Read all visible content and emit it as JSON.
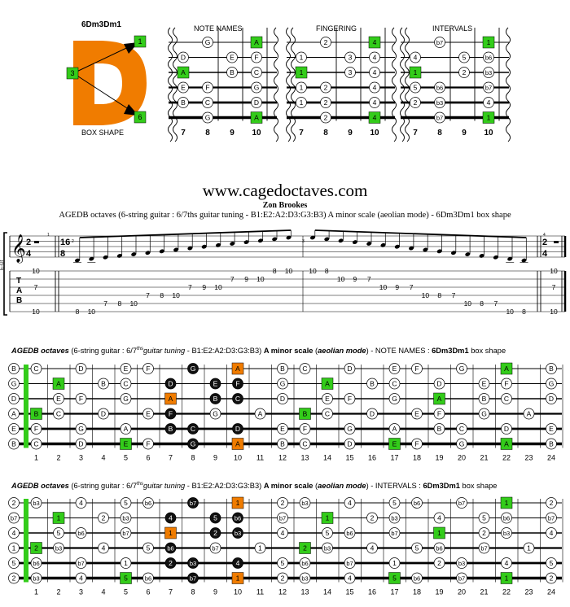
{
  "shape": {
    "name": "6Dm3Dm1",
    "letter": "D",
    "caption": "BOX SHAPE",
    "markers": [
      "1",
      "3",
      "6"
    ]
  },
  "mini": {
    "titles": [
      "NOTE NAMES",
      "FINGERING",
      "INTERVALS"
    ],
    "frets": [
      "7",
      "8",
      "9",
      "10"
    ],
    "names": [
      [
        "",
        "G",
        "",
        "A"
      ],
      [
        "D",
        "",
        "E",
        "F"
      ],
      [
        "A",
        "",
        "B",
        "C"
      ],
      [
        "E",
        "F",
        "",
        "G"
      ],
      [
        "B",
        "C",
        "",
        "D"
      ],
      [
        "",
        "G",
        "",
        "A"
      ]
    ],
    "fingers": [
      [
        "",
        "2",
        "",
        "4"
      ],
      [
        "1",
        "",
        "3",
        "4"
      ],
      [
        "1",
        "",
        "3",
        "4"
      ],
      [
        "1",
        "2",
        "",
        "4"
      ],
      [
        "1",
        "2",
        "",
        "4"
      ],
      [
        "",
        "2",
        "",
        "4"
      ]
    ],
    "intervals": [
      [
        "",
        "b7",
        "",
        "1"
      ],
      [
        "4",
        "",
        "5",
        "b6"
      ],
      [
        "1",
        "",
        "2",
        "b3"
      ],
      [
        "5",
        "b6",
        "",
        "b7"
      ],
      [
        "2",
        "b3",
        "",
        "4"
      ],
      [
        "",
        "b7",
        "",
        "1"
      ]
    ],
    "roots": [
      [
        0,
        3
      ],
      [
        2,
        0
      ],
      [
        5,
        3
      ]
    ]
  },
  "site": {
    "url": "www.cagedoctaves.com",
    "author": "Zon Brookes",
    "score_title": "AGEDB octaves (6-string guitar : 6/7ths guitar tuning - B1:E2:A2:D3:G3:B3) A minor scale (aeolian mode) - 6Dm3Dm1 box shape"
  },
  "score": {
    "clef_label": "E-Gt",
    "time1": [
      "2",
      "4"
    ],
    "time2": [
      "16",
      "8"
    ],
    "measure_nums": [
      "1",
      "2",
      "3",
      "4"
    ],
    "tab_letters": [
      "T",
      "A",
      "B"
    ],
    "m1_nums": [
      "10",
      "7",
      "10"
    ],
    "m2_tab": [
      {
        "s": 6,
        "f": "8"
      },
      {
        "s": 6,
        "f": "10"
      },
      {
        "s": 5,
        "f": "7"
      },
      {
        "s": 5,
        "f": "8"
      },
      {
        "s": 5,
        "f": "10"
      },
      {
        "s": 4,
        "f": "7"
      },
      {
        "s": 4,
        "f": "8"
      },
      {
        "s": 4,
        "f": "10"
      },
      {
        "s": 3,
        "f": "7"
      },
      {
        "s": 3,
        "f": "9"
      },
      {
        "s": 3,
        "f": "10"
      },
      {
        "s": 2,
        "f": "7"
      },
      {
        "s": 2,
        "f": "9"
      },
      {
        "s": 2,
        "f": "10"
      },
      {
        "s": 1,
        "f": "8"
      },
      {
        "s": 1,
        "f": "10"
      }
    ],
    "m3_tab": [
      {
        "s": 1,
        "f": "10"
      },
      {
        "s": 1,
        "f": "8"
      },
      {
        "s": 2,
        "f": "10"
      },
      {
        "s": 2,
        "f": "9"
      },
      {
        "s": 2,
        "f": "7"
      },
      {
        "s": 3,
        "f": "10"
      },
      {
        "s": 3,
        "f": "9"
      },
      {
        "s": 3,
        "f": "7"
      },
      {
        "s": 4,
        "f": "10"
      },
      {
        "s": 4,
        "f": "8"
      },
      {
        "s": 4,
        "f": "7"
      },
      {
        "s": 5,
        "f": "10"
      },
      {
        "s": 5,
        "f": "8"
      },
      {
        "s": 5,
        "f": "7"
      },
      {
        "s": 6,
        "f": "10"
      },
      {
        "s": 6,
        "f": "8"
      }
    ],
    "m4_nums": [
      "10",
      "7",
      "10"
    ]
  },
  "big1": {
    "title_bold": "AGEDB octaves",
    "title_a": " (6-string guitar : 6/7",
    "title_sup": "ths",
    "title_i": "guitar tuning",
    "title_b": " - B1:E2:A2:D3:G3:B3) ",
    "title_bold2": "A minor scale",
    "title_c": " (",
    "title_bi": "aeolian mode",
    "title_d": ") - NOTE NAMES : ",
    "title_bold3": "6Dm3Dm1",
    "title_e": " box shape",
    "open": [
      "B",
      "G",
      "D",
      "A",
      "E",
      "B"
    ],
    "rows": [
      [
        "C",
        "",
        "D",
        "",
        "E",
        "F",
        "",
        "G",
        "",
        "A",
        "",
        "B",
        "C",
        "",
        "D",
        "",
        "E",
        "F",
        "",
        "G",
        "",
        "A",
        "",
        "B"
      ],
      [
        "",
        "A",
        "",
        "B",
        "C",
        "",
        "D",
        "",
        "E",
        "F",
        "",
        "G",
        "",
        "A",
        "",
        "B",
        "C",
        "",
        "D",
        "",
        "E",
        "F",
        "",
        "G"
      ],
      [
        "",
        "E",
        "F",
        "",
        "G",
        "",
        "A",
        "",
        "B",
        "C",
        "",
        "D",
        "",
        "E",
        "F",
        "",
        "G",
        "",
        "A",
        "",
        "B",
        "C",
        "",
        "D"
      ],
      [
        "B",
        "C",
        "",
        "D",
        "",
        "E",
        "F",
        "",
        "G",
        "",
        "A",
        "",
        "B",
        "C",
        "",
        "D",
        "",
        "E",
        "F",
        "",
        "G",
        "",
        "A",
        ""
      ],
      [
        "F",
        "",
        "G",
        "",
        "A",
        "",
        "B",
        "C",
        "",
        "D",
        "",
        "E",
        "F",
        "",
        "G",
        "",
        "A",
        "",
        "B",
        "C",
        "",
        "D",
        "",
        "E"
      ],
      [
        "C",
        "",
        "D",
        "",
        "E",
        "F",
        "",
        "G",
        "",
        "A",
        "",
        "B",
        "C",
        "",
        "D",
        "",
        "E",
        "F",
        "",
        "G",
        "",
        "A",
        "",
        "B"
      ]
    ]
  },
  "big2": {
    "title_bold": "AGEDB octaves",
    "title_a": " (6-string guitar : 6/7",
    "title_sup": "ths",
    "title_i": "guitar tuning",
    "title_b": " - B1:E2:A2:D3:G3:B3) ",
    "title_bold2": "A minor scale",
    "title_c": " (",
    "title_bi": "aeolian mode",
    "title_d": ") - INTERVALS : ",
    "title_bold3": "6Dm3Dm1",
    "title_e": " box shape",
    "open": [
      "2",
      "b7",
      "4",
      "1",
      "5",
      "2"
    ],
    "rows": [
      [
        "b3",
        "",
        "4",
        "",
        "5",
        "b6",
        "",
        "b7",
        "",
        "1",
        "",
        "2",
        "b3",
        "",
        "4",
        "",
        "5",
        "b6",
        "",
        "b7",
        "",
        "1",
        "",
        "2"
      ],
      [
        "",
        "1",
        "",
        "2",
        "b3",
        "",
        "4",
        "",
        "5",
        "b6",
        "",
        "b7",
        "",
        "1",
        "",
        "2",
        "b3",
        "",
        "4",
        "",
        "5",
        "b6",
        "",
        "b7"
      ],
      [
        "",
        "5",
        "b6",
        "",
        "b7",
        "",
        "1",
        "",
        "2",
        "b3",
        "",
        "4",
        "",
        "5",
        "b6",
        "",
        "b7",
        "",
        "1",
        "",
        "2",
        "b3",
        "",
        "4"
      ],
      [
        "2",
        "b3",
        "",
        "4",
        "",
        "5",
        "b6",
        "",
        "b7",
        "",
        "1",
        "",
        "2",
        "b3",
        "",
        "4",
        "",
        "5",
        "b6",
        "",
        "b7",
        "",
        "1",
        ""
      ],
      [
        "b6",
        "",
        "b7",
        "",
        "1",
        "",
        "2",
        "b3",
        "",
        "4",
        "",
        "5",
        "b6",
        "",
        "b7",
        "",
        "1",
        "",
        "2",
        "b3",
        "",
        "4",
        "",
        "5"
      ],
      [
        "b3",
        "",
        "4",
        "",
        "5",
        "b6",
        "",
        "b7",
        "",
        "1",
        "",
        "2",
        "b3",
        "",
        "4",
        "",
        "5",
        "b6",
        "",
        "b7",
        "",
        "1",
        "",
        "2"
      ]
    ]
  },
  "fret_numbers": [
    "1",
    "2",
    "3",
    "4",
    "5",
    "6",
    "7",
    "8",
    "9",
    "10",
    "11",
    "12",
    "13",
    "14",
    "15",
    "16",
    "17",
    "18",
    "19",
    "20",
    "21",
    "22",
    "23",
    "24"
  ],
  "colors": {
    "orange": "#f07c00",
    "green": "#33cc1a",
    "black": "#111111",
    "white": "#ffffff"
  }
}
